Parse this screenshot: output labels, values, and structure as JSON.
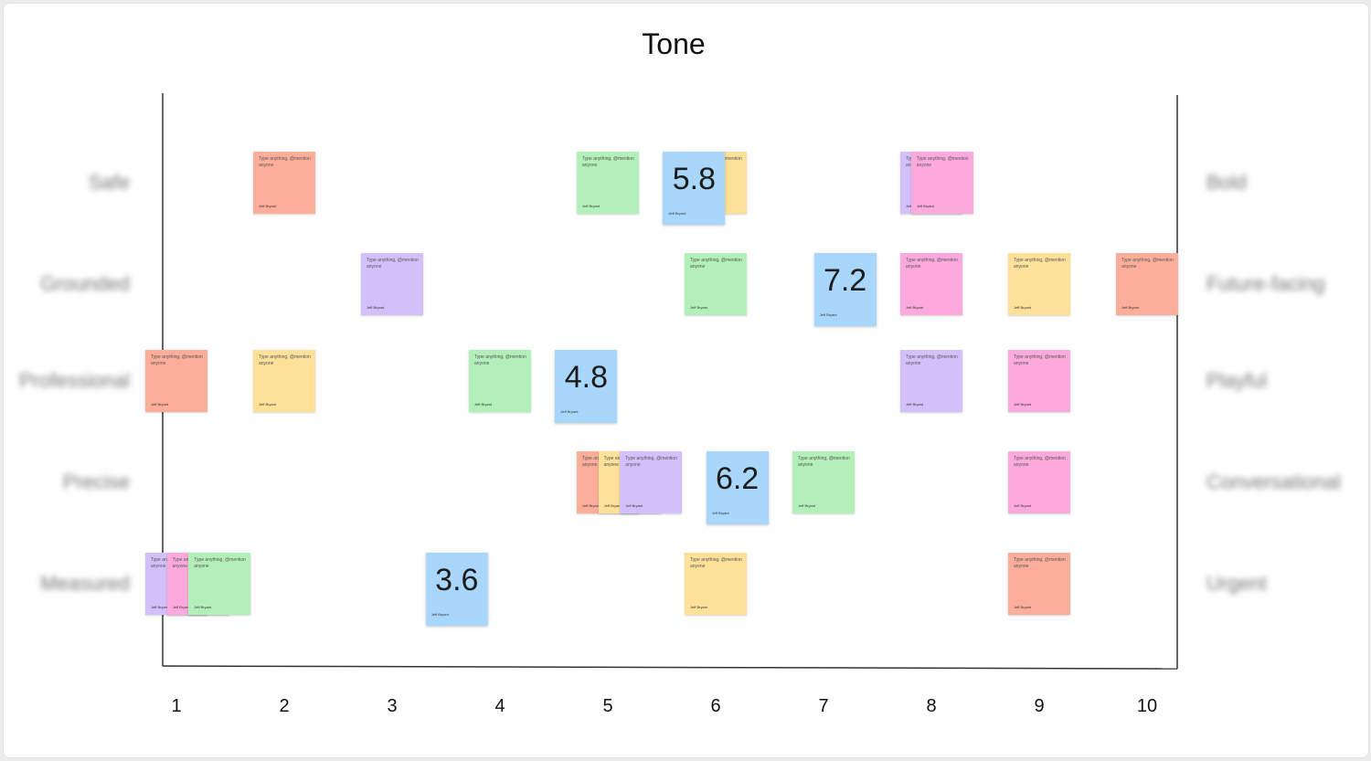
{
  "title": "Tone",
  "x_ticks": [
    "1",
    "2",
    "3",
    "4",
    "5",
    "6",
    "7",
    "8",
    "9",
    "10"
  ],
  "left_labels": [
    "Safe",
    "Grounded",
    "Professional",
    "Precise",
    "Measured"
  ],
  "right_labels": [
    "Bold",
    "Future-facing",
    "Playful",
    "Conversational",
    "Urgent"
  ],
  "note_text": "Type anything, @mention anyone",
  "note_author": "Jeff Bryant",
  "colors": {
    "red": "#fdae9b",
    "yellow": "#fde199",
    "green": "#b3efb9",
    "purple": "#d3c0fb",
    "pink": "#fca9de",
    "blue": "#a9d7fb"
  },
  "rows": [
    {
      "label": "Safe",
      "notes": [
        {
          "x": 2,
          "color": "red"
        },
        {
          "x": 5,
          "color": "green"
        },
        {
          "x": 6,
          "color": "yellow"
        },
        {
          "x": 8,
          "color": "purple"
        },
        {
          "x": 8.1,
          "color": "pink"
        }
      ],
      "score": {
        "value": "5.8"
      }
    },
    {
      "label": "Grounded",
      "notes": [
        {
          "x": 3,
          "color": "purple"
        },
        {
          "x": 6,
          "color": "green"
        },
        {
          "x": 8,
          "color": "pink"
        },
        {
          "x": 9,
          "color": "yellow"
        },
        {
          "x": 10,
          "color": "red"
        }
      ],
      "score": {
        "value": "7.2"
      }
    },
    {
      "label": "Professional",
      "notes": [
        {
          "x": 1,
          "color": "red"
        },
        {
          "x": 2,
          "color": "yellow"
        },
        {
          "x": 4,
          "color": "green"
        },
        {
          "x": 8,
          "color": "purple"
        },
        {
          "x": 9,
          "color": "pink"
        }
      ],
      "score": {
        "value": "4.8"
      }
    },
    {
      "label": "Precise",
      "notes": [
        {
          "x": 5,
          "color": "red"
        },
        {
          "x": 5.2,
          "color": "yellow"
        },
        {
          "x": 5.4,
          "color": "purple"
        },
        {
          "x": 7,
          "color": "green"
        },
        {
          "x": 9,
          "color": "pink"
        }
      ],
      "score": {
        "value": "6.2"
      }
    },
    {
      "label": "Measured",
      "notes": [
        {
          "x": 1,
          "color": "purple"
        },
        {
          "x": 1.2,
          "color": "pink"
        },
        {
          "x": 1.4,
          "color": "green"
        },
        {
          "x": 6,
          "color": "yellow"
        },
        {
          "x": 9,
          "color": "red"
        }
      ],
      "score": {
        "value": "3.6"
      }
    }
  ]
}
